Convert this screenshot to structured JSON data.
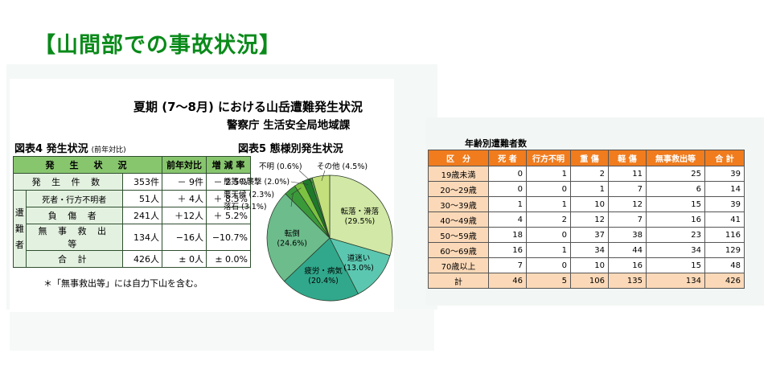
{
  "slide_title": "【山間部での事故状況】",
  "document": {
    "title": "夏期 (7〜8月) における山岳遭難発生状況",
    "subtitle": "警察庁  生活安全局地域課"
  },
  "figure4": {
    "title": "図表4  発生状況",
    "note": "(前年対比)",
    "headers": [
      "発　生　状　況",
      "前年対比",
      "増 減 率"
    ],
    "side_label": [
      "遭",
      "難",
      "者"
    ],
    "rows": [
      {
        "label": "発 生 件 数",
        "value": "353件",
        "diff": "－ 9件",
        "rate": "－ 2.5%"
      },
      {
        "label": "死者・行方不明者",
        "value": "51人",
        "diff": "＋ 4人",
        "rate": "＋ 8.5%"
      },
      {
        "label": "負 傷 者",
        "value": "241人",
        "diff": "＋12人",
        "rate": "＋ 5.2%"
      },
      {
        "label": "無 事 救 出 等",
        "value": "134人",
        "diff": "−16人",
        "rate": "−10.7%"
      },
      {
        "label": "合 計",
        "value": "426人",
        "diff": "± 0人",
        "rate": "± 0.0%"
      }
    ],
    "footnote": "＊「無事救出等」には自力下山を含む。"
  },
  "chart_data": [
    {
      "type": "pie",
      "title": "図表5  態様別発生状況",
      "slices": [
        {
          "label": "転落・滑落",
          "value": 29.5,
          "display": "(29.5%)",
          "color": "#d2e8a6"
        },
        {
          "label": "道迷い",
          "value": 13.0,
          "display": "(13.0%)",
          "color": "#5cc7b0"
        },
        {
          "label": "疲労・病気",
          "value": 20.4,
          "display": "(20.4%)",
          "color": "#31a88c"
        },
        {
          "label": "転倒",
          "value": 24.6,
          "display": "(24.6%)",
          "color": "#6dbc8c"
        },
        {
          "label": "落石",
          "value": 3.1,
          "display": "(3.1%)",
          "color": "#3a9a3a"
        },
        {
          "label": "悪天候",
          "value": 2.3,
          "display": "(2.3%)",
          "color": "#7cc241"
        },
        {
          "label": "熊等の襲撃",
          "value": 2.0,
          "display": "(2.0%)",
          "color": "#1e7a2a"
        },
        {
          "label": "不明",
          "value": 0.6,
          "display": "(0.6%)",
          "color": "#4aa046"
        },
        {
          "label": "その他",
          "value": 4.5,
          "display": "(4.5%)",
          "color": "#c4e07c"
        }
      ]
    },
    {
      "type": "table",
      "title": "年齢別遭難者数",
      "columns": [
        "区　分",
        "死 者",
        "行方不明",
        "重 傷",
        "軽 傷",
        "無事救出等",
        "合 計"
      ],
      "rows": [
        [
          "19歳未満",
          "0",
          "1",
          "2",
          "11",
          "25",
          "39"
        ],
        [
          "20〜29歳",
          "0",
          "0",
          "1",
          "7",
          "6",
          "14"
        ],
        [
          "30〜39歳",
          "1",
          "1",
          "10",
          "12",
          "15",
          "39"
        ],
        [
          "40〜49歳",
          "4",
          "2",
          "12",
          "7",
          "16",
          "41"
        ],
        [
          "50〜59歳",
          "18",
          "0",
          "37",
          "38",
          "23",
          "116"
        ],
        [
          "60〜69歳",
          "16",
          "1",
          "34",
          "44",
          "34",
          "129"
        ],
        [
          "70歳以上",
          "7",
          "0",
          "10",
          "16",
          "15",
          "48"
        ],
        [
          "計",
          "46",
          "5",
          "106",
          "135",
          "134",
          "426"
        ]
      ]
    }
  ]
}
